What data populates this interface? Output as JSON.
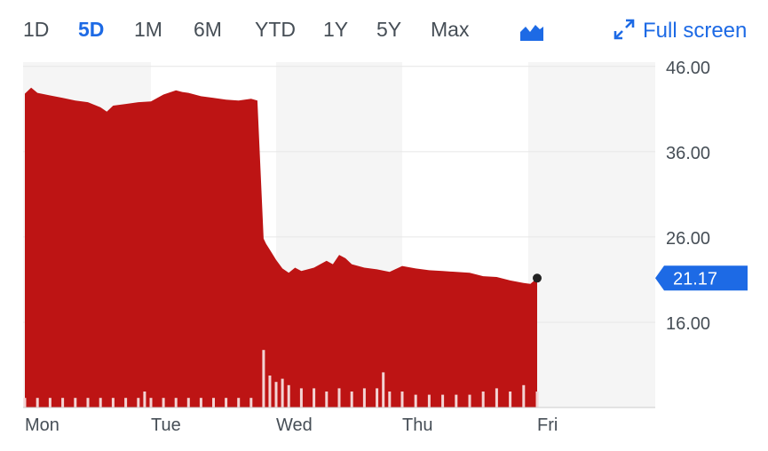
{
  "range_tabs": [
    {
      "label": "1D",
      "active": false
    },
    {
      "label": "5D",
      "active": true
    },
    {
      "label": "1M",
      "active": false
    },
    {
      "label": "6M",
      "active": false
    },
    {
      "label": "YTD",
      "active": false
    },
    {
      "label": "1Y",
      "active": false
    },
    {
      "label": "5Y",
      "active": false
    },
    {
      "label": "Max",
      "active": false
    }
  ],
  "toolbar": {
    "chart_type_icon": "mountain-chart-icon",
    "fullscreen_icon": "expand-arrows-icon",
    "fullscreen_label": "Full screen"
  },
  "colors": {
    "accent": "#1d6ae5",
    "area_fill": "#bd1414",
    "volume_bar": "#f3d4d4",
    "grid": "#e6e6e6",
    "shade": "#f5f5f5",
    "price_marker": "#1d6ae5"
  },
  "chart_data": {
    "type": "area",
    "title": "",
    "xlabel": "",
    "ylabel": "",
    "x_ticks": [
      "Mon",
      "Tue",
      "Wed",
      "Thu",
      "Fri"
    ],
    "y_ticks": [
      "46.00",
      "36.00",
      "26.00",
      "16.00"
    ],
    "ylim": [
      6.0,
      46.5
    ],
    "xlim": [
      0,
      4
    ],
    "grid": true,
    "last_price": "21.17",
    "series": [
      {
        "x": [
          0.0,
          0.05,
          0.1,
          0.2,
          0.3,
          0.4,
          0.5,
          0.6,
          0.65,
          0.7,
          0.8,
          0.9,
          1.0,
          1.1,
          1.2,
          1.25,
          1.3,
          1.4,
          1.5,
          1.6,
          1.7,
          1.8,
          1.85,
          1.9,
          1.92,
          1.95,
          2.0,
          2.05,
          2.1,
          2.15,
          2.2,
          2.3,
          2.4,
          2.45,
          2.5,
          2.55,
          2.6,
          2.7,
          2.8,
          2.9,
          3.0,
          3.1,
          3.2,
          3.3,
          3.4,
          3.5,
          3.6,
          3.7,
          3.8,
          3.9,
          3.95,
          4.0
        ],
        "values": [
          42.8,
          43.5,
          42.9,
          42.6,
          42.3,
          42.0,
          41.8,
          41.2,
          40.7,
          41.4,
          41.6,
          41.8,
          41.9,
          42.7,
          43.2,
          43.0,
          42.9,
          42.5,
          42.3,
          42.1,
          42.0,
          42.2,
          42.0,
          25.8,
          25.2,
          24.5,
          23.3,
          22.3,
          21.8,
          22.4,
          22.0,
          22.4,
          23.2,
          22.8,
          23.9,
          23.5,
          22.8,
          22.4,
          22.2,
          21.9,
          22.6,
          22.3,
          22.1,
          22.0,
          21.9,
          21.8,
          21.4,
          21.3,
          20.9,
          20.6,
          20.5,
          21.17
        ]
      }
    ],
    "volume": {
      "x": [
        0.0,
        0.1,
        0.2,
        0.3,
        0.4,
        0.5,
        0.6,
        0.7,
        0.8,
        0.9,
        0.95,
        1.0,
        1.1,
        1.2,
        1.3,
        1.4,
        1.5,
        1.6,
        1.7,
        1.8,
        1.9,
        1.95,
        2.0,
        2.05,
        2.1,
        2.2,
        2.3,
        2.4,
        2.5,
        2.6,
        2.7,
        2.8,
        2.85,
        2.9,
        3.0,
        3.1,
        3.2,
        3.3,
        3.4,
        3.5,
        3.6,
        3.7,
        3.8,
        3.9,
        4.0
      ],
      "values": [
        3,
        3,
        3,
        3,
        3,
        3,
        3,
        3,
        3,
        3,
        5,
        3,
        3,
        3,
        3,
        3,
        3,
        3,
        3,
        3,
        18,
        10,
        8,
        9,
        7,
        6,
        6,
        5,
        6,
        5,
        6,
        6,
        11,
        5,
        5,
        4,
        4,
        4,
        4,
        4,
        5,
        6,
        5,
        7,
        5
      ]
    }
  }
}
